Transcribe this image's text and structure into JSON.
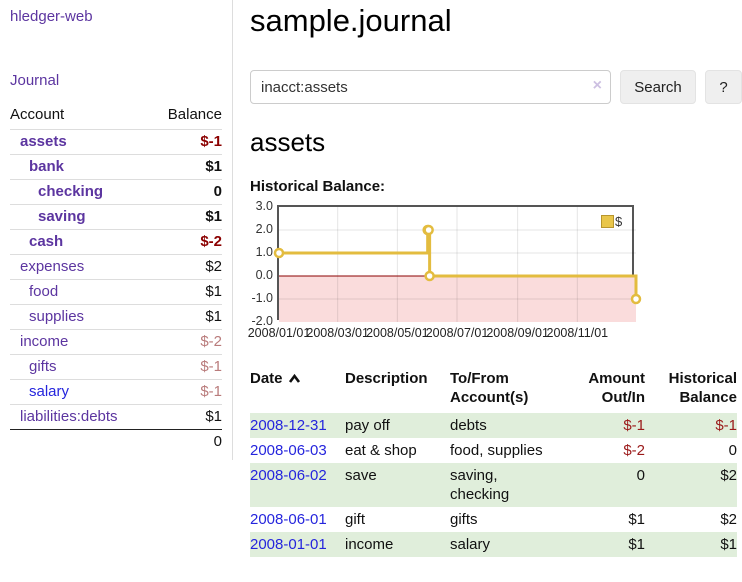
{
  "sidebar": {
    "brand": "hledger-web",
    "nav": {
      "journal": "Journal"
    },
    "table": {
      "headers": {
        "account": "Account",
        "balance": "Balance"
      },
      "accounts": [
        {
          "name": "assets",
          "balance": "$-1"
        },
        {
          "name": "bank",
          "balance": "$1"
        },
        {
          "name": "checking",
          "balance": "0"
        },
        {
          "name": "saving",
          "balance": "$1"
        },
        {
          "name": "cash",
          "balance": "$-2"
        },
        {
          "name": "expenses",
          "balance": "$2"
        },
        {
          "name": "food",
          "balance": "$1"
        },
        {
          "name": "supplies",
          "balance": "$1"
        },
        {
          "name": "income",
          "balance": "$-2"
        },
        {
          "name": "gifts",
          "balance": "$-1"
        },
        {
          "name": "salary",
          "balance": "$-1"
        },
        {
          "name": "liabilities:debts",
          "balance": "$1"
        }
      ],
      "total": "0"
    }
  },
  "header": {
    "title": "sample.journal"
  },
  "search": {
    "query": "inacct:assets",
    "clear_icon": "×",
    "button_label": "Search",
    "help_label": "?"
  },
  "account_page": {
    "heading": "assets",
    "chart_label": "Historical Balance:"
  },
  "chart_data": {
    "type": "line",
    "step": true,
    "title": "Historical Balance",
    "ylim": [
      -2,
      3
    ],
    "x_range": [
      "2008-01-01",
      "2008-12-31"
    ],
    "y_ticks": [
      "3.0",
      "2.0",
      "1.0",
      "0.0",
      "-1.0",
      "-2.0"
    ],
    "x_ticks": [
      {
        "label": "2008/01/01",
        "date": "2008-01-01"
      },
      {
        "label": "2008/03/01",
        "date": "2008-03-01"
      },
      {
        "label": "2008/05/01",
        "date": "2008-05-01"
      },
      {
        "label": "2008/07/01",
        "date": "2008-07-01"
      },
      {
        "label": "2008/09/01",
        "date": "2008-09-01"
      },
      {
        "label": "2008/11/01",
        "date": "2008-11-01"
      }
    ],
    "series": [
      {
        "name": "$",
        "points": [
          {
            "date": "2008-01-01",
            "value": 1
          },
          {
            "date": "2008-06-01",
            "value": 2
          },
          {
            "date": "2008-06-02",
            "value": 2
          },
          {
            "date": "2008-06-03",
            "value": 0
          },
          {
            "date": "2008-12-31",
            "value": -1
          }
        ]
      }
    ],
    "legend_position": "top-right",
    "grid": true,
    "colors": {
      "line": "#e3bc3f",
      "negative_bg": "#fadcdc",
      "zero_line": "#8b0000"
    }
  },
  "register_table": {
    "headers": {
      "date": "Date",
      "description": "Description",
      "tofrom": "To/From Account(s)",
      "amount": "Amount Out/In",
      "historical": "Historical Balance"
    },
    "sort": "ascending",
    "rows": [
      {
        "date": "2008-12-31",
        "description": "pay off",
        "accounts": "debts",
        "amount": "$-1",
        "balance": "$-1"
      },
      {
        "date": "2008-06-03",
        "description": "eat & shop",
        "accounts": "food, supplies",
        "amount": "$-2",
        "balance": "0"
      },
      {
        "date": "2008-06-02",
        "description": "save",
        "accounts": "saving, checking",
        "amount": "0",
        "balance": "$2"
      },
      {
        "date": "2008-06-01",
        "description": "gift",
        "accounts": "gifts",
        "amount": "$1",
        "balance": "$2"
      },
      {
        "date": "2008-01-01",
        "description": "income",
        "accounts": "salary",
        "amount": "$1",
        "balance": "$1"
      }
    ]
  },
  "colors": {
    "link_purple": "#5c35a0",
    "link_blue": "#2525dd",
    "negative_dark_red": "#8b0000",
    "negative_soft_red": "#b97b7b",
    "table_negative_red": "#9b1a1a",
    "row_stripe_green": "#e0eedb",
    "chart_gold": "#e3bc3f",
    "chart_negative_bg": "#fadcdc"
  }
}
